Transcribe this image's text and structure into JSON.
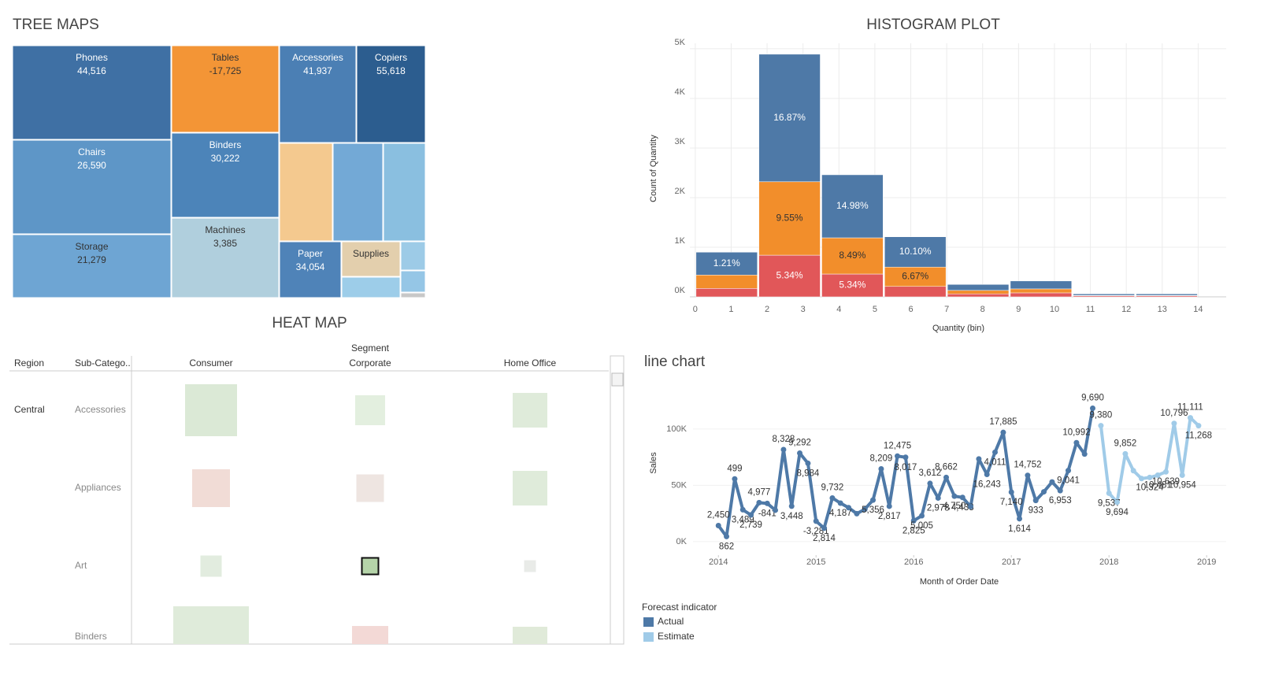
{
  "chart_data": [
    {
      "type": "treemap",
      "title": "TREE MAPS",
      "categories": [
        "Phones",
        "Tables",
        "Accessories",
        "Copiers",
        "Chairs",
        "Binders",
        "Storage",
        "Machines",
        "Paper",
        "Supplies"
      ],
      "values": [
        44516,
        -17725,
        41937,
        55618,
        26590,
        30222,
        21279,
        3385,
        34054,
        null
      ],
      "value_labels": [
        "44,516",
        "-17,725",
        "41,937",
        "55,618",
        "26,590",
        "30,222",
        "21,279",
        "3,385",
        "34,054",
        null
      ],
      "colors": [
        "#3f70a4",
        "#f39536",
        "#4b7fb4",
        "#2c5d8f",
        "#5e96c7",
        "#4c84b9",
        "#6ea5d3",
        "#b0cfdd",
        "#4f83b8",
        "#e3cfad"
      ]
    },
    {
      "type": "histogram",
      "title": "HISTOGRAM PLOT",
      "x_label": "Quantity (bin)",
      "y_label": "Count of Quantity",
      "bins": [
        0,
        1.75,
        3.5,
        5.25,
        7,
        8.75,
        10.5,
        12.25,
        14
      ],
      "series": [
        {
          "color": "#e15759",
          "label_color": "#ffffff",
          "values": [
            170,
            840,
            460,
            210,
            60,
            80,
            20,
            20
          ],
          "labels": [
            null,
            "5.34%",
            "5.34%",
            null,
            null,
            null,
            null,
            null
          ]
        },
        {
          "color": "#f28e2b",
          "label_color": "#333333",
          "values": [
            270,
            1480,
            730,
            390,
            70,
            80,
            10,
            10
          ],
          "labels": [
            null,
            "9.55%",
            "8.49%",
            "6.67%",
            null,
            null,
            null,
            null
          ]
        },
        {
          "color": "#4e79a7",
          "label_color": "#ffffff",
          "values": [
            460,
            2570,
            1270,
            610,
            120,
            160,
            30,
            30
          ],
          "labels": [
            "1.21%",
            "16.87%",
            "14.98%",
            "10.10%",
            null,
            null,
            null,
            null
          ]
        }
      ],
      "xlim": [
        -0.15,
        14.78
      ],
      "xticks": [
        0,
        1,
        2,
        3,
        4,
        5,
        6,
        7,
        8,
        9,
        10,
        11,
        12,
        13,
        14
      ],
      "ylim": [
        0,
        5110
      ],
      "yticks": [
        {
          "value": 0,
          "label": "0K"
        },
        {
          "value": 1000,
          "label": "1K"
        },
        {
          "value": 2000,
          "label": "2K"
        },
        {
          "value": 3000,
          "label": "3K"
        },
        {
          "value": 4000,
          "label": "4K"
        },
        {
          "value": 5000,
          "label": "5K"
        }
      ],
      "grid": true
    },
    {
      "type": "line",
      "title": "line chart",
      "x_label": "Month of Order Date",
      "y_label": "Sales",
      "legend_title": "Forecast indicator",
      "series": [
        {
          "name": "Actual",
          "color": "#4e79a7",
          "x": [
            2014,
            2014.083,
            2014.167,
            2014.25,
            2014.333,
            2014.417,
            2014.5,
            2014.583,
            2014.667,
            2014.75,
            2014.833,
            2014.917,
            2015,
            2015.083,
            2015.167,
            2015.25,
            2015.333,
            2015.417,
            2015.5,
            2015.583,
            2015.667,
            2015.75,
            2015.833,
            2015.917,
            2016,
            2016.083,
            2016.167,
            2016.25,
            2016.333,
            2016.417,
            2016.5,
            2016.583,
            2016.667,
            2016.75,
            2016.833,
            2016.917,
            2017,
            2017.083,
            2017.167,
            2017.25,
            2017.333,
            2017.417,
            2017.5,
            2017.583,
            2017.667,
            2017.75,
            2017.833
          ],
          "values": [
            14237,
            4520,
            55691,
            28295,
            23648,
            34595,
            33946,
            27909,
            81777,
            31453,
            78629,
            69546,
            18174,
            11951,
            38726,
            34195,
            30132,
            24797,
            28765,
            36898,
            64596,
            31405,
            75973,
            74920,
            18542,
            22979,
            51716,
            38750,
            56988,
            40345,
            39262,
            31115,
            73410,
            59688,
            79412,
            96999,
            43971,
            20301,
            58872,
            36522,
            44261,
            52981,
            45264,
            63121,
            87867,
            77777,
            118448
          ],
          "labels": [
            "2,450",
            "862",
            "499",
            "3,489",
            "2,739",
            "4,977",
            "-841",
            null,
            "8,328",
            "3,448",
            "9,292",
            "8,984",
            "-3,281",
            "2,814",
            "9,732",
            "4,187",
            null,
            null,
            null,
            "5,356",
            "8,209",
            "2,817",
            "12,475",
            "8,017",
            "2,825",
            "5,005",
            "3,612",
            "2,978",
            "8,662",
            "4,750",
            "4,433",
            null,
            null,
            "16,243",
            "4,011",
            "17,885",
            "7,140",
            "1,614",
            "14,752",
            "933",
            null,
            null,
            "6,953",
            "9,041",
            "10,992",
            null,
            "9,690"
          ]
        },
        {
          "name": "Estimate",
          "color": "#a0cbe8",
          "x": [
            2017.917,
            2018,
            2018.083,
            2018.167,
            2018.25,
            2018.333,
            2018.417,
            2018.5,
            2018.583,
            2018.667,
            2018.75,
            2018.833,
            2018.917
          ],
          "values": [
            103000,
            43000,
            35000,
            78000,
            63000,
            56000,
            57000,
            59000,
            62000,
            105000,
            59000,
            110000,
            103000
          ],
          "labels": [
            "9,380",
            "9,537",
            "9,694",
            "9,852",
            null,
            null,
            "10,324",
            "10,481",
            "10,639",
            "10,796",
            "10,954",
            "11,111",
            "11,268"
          ]
        }
      ],
      "xlim": [
        2013.74,
        2019.2
      ],
      "xticks": [
        2014,
        2015,
        2016,
        2017,
        2018,
        2019
      ],
      "ylim": [
        -12000,
        144000
      ],
      "yticks": [
        {
          "value": 0,
          "label": "0K"
        },
        {
          "value": 50000,
          "label": "50K"
        },
        {
          "value": 100000,
          "label": "100K"
        }
      ],
      "grid": true
    }
  ],
  "heat_map": {
    "title": "HEAT MAP",
    "column_group": "Segment",
    "headers": [
      "Region",
      "Sub-Catego..",
      "Consumer",
      "Corporate",
      "Home Office"
    ],
    "region": "Central",
    "subcategories": [
      "Accessories",
      "Appliances",
      "Art",
      "Binders"
    ]
  }
}
